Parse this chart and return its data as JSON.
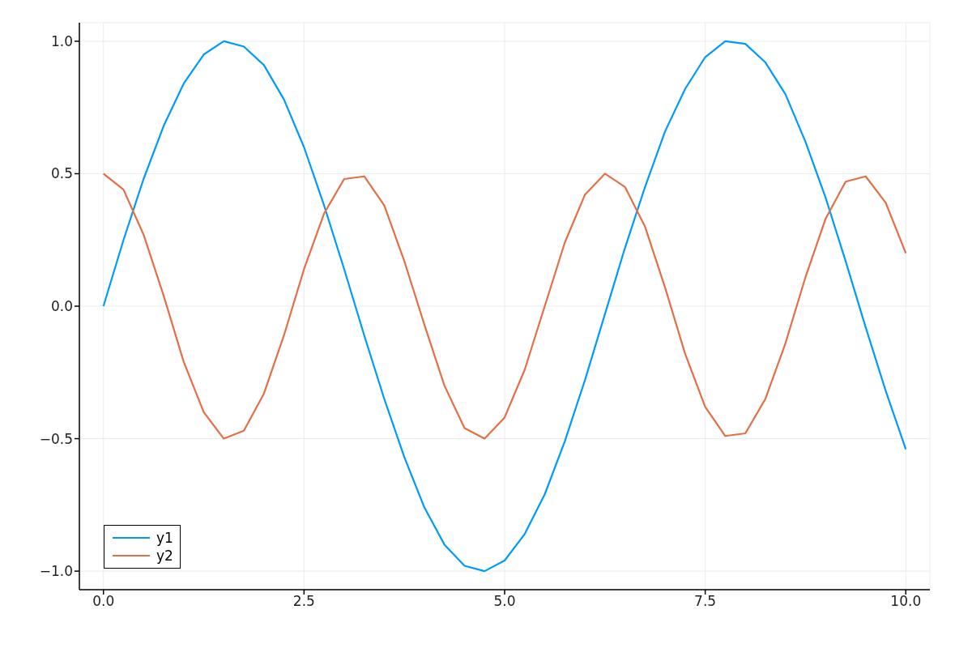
{
  "chart_data": {
    "type": "line",
    "x": [
      0,
      0.25,
      0.5,
      0.75,
      1,
      1.25,
      1.5,
      1.75,
      2,
      2.25,
      2.5,
      2.75,
      3,
      3.25,
      3.5,
      3.75,
      4,
      4.25,
      4.5,
      4.75,
      5,
      5.25,
      5.5,
      5.75,
      6,
      6.25,
      6.5,
      6.75,
      7,
      7.25,
      7.5,
      7.75,
      8,
      8.25,
      8.5,
      8.75,
      9,
      9.25,
      9.5,
      9.75,
      10
    ],
    "series": [
      {
        "name": "y1",
        "color": "#009af9",
        "values": [
          0,
          0.25,
          0.48,
          0.68,
          0.84,
          0.95,
          1.0,
          0.98,
          0.91,
          0.78,
          0.6,
          0.38,
          0.14,
          -0.11,
          -0.35,
          -0.57,
          -0.76,
          -0.9,
          -0.98,
          -1.0,
          -0.96,
          -0.86,
          -0.71,
          -0.51,
          -0.28,
          -0.03,
          0.22,
          0.45,
          0.66,
          0.82,
          0.94,
          1.0,
          0.99,
          0.92,
          0.8,
          0.62,
          0.41,
          0.17,
          -0.08,
          -0.32,
          -0.54
        ]
      },
      {
        "name": "y2",
        "color": "#e26f46",
        "values": [
          0.5,
          0.44,
          0.27,
          0.04,
          -0.21,
          -0.4,
          -0.5,
          -0.47,
          -0.33,
          -0.11,
          0.14,
          0.35,
          0.48,
          0.49,
          0.38,
          0.17,
          -0.07,
          -0.3,
          -0.46,
          -0.5,
          -0.42,
          -0.24,
          0,
          0.24,
          0.42,
          0.5,
          0.45,
          0.3,
          0.07,
          -0.18,
          -0.38,
          -0.49,
          -0.48,
          -0.35,
          -0.14,
          0.11,
          0.33,
          0.47,
          0.49,
          0.39,
          0.2
        ]
      }
    ],
    "xlim": [
      -0.3,
      10.3
    ],
    "xticks": [
      {
        "value": 0,
        "label": "0.0"
      },
      2.5,
      {
        "value": 5,
        "label": "5.0"
      },
      7.5,
      {
        "value": 10,
        "label": "10.0"
      }
    ],
    "ylim": [
      -1.07,
      1.07
    ],
    "yticks": [
      {
        "value": -1,
        "label": "−1.0"
      },
      {
        "value": -0.5,
        "label": "−0.5"
      },
      {
        "value": 0,
        "label": "0.0"
      },
      0.5,
      {
        "value": 1,
        "label": "1.0"
      }
    ],
    "grid": true,
    "legend": "bottom left",
    "marker": "none",
    "line_style": "solid"
  }
}
